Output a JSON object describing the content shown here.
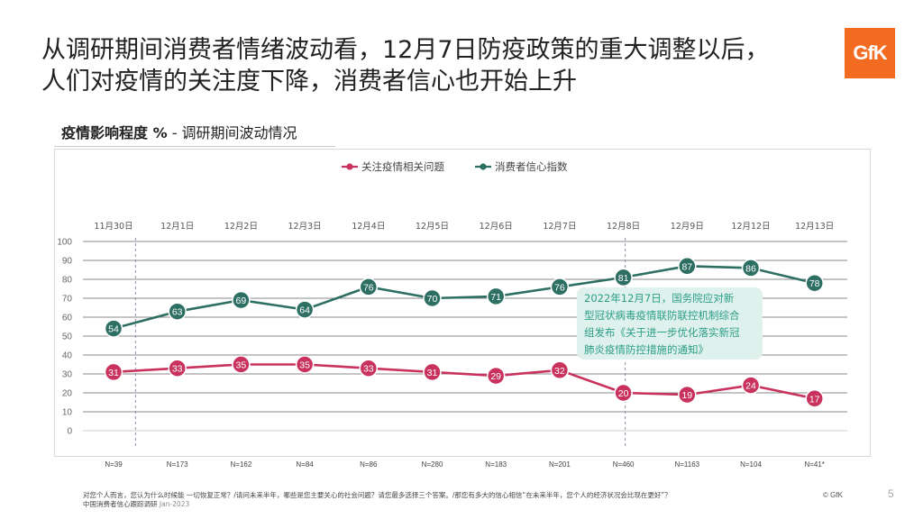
{
  "slide": {
    "title_line1": "从调研期间消费者情绪波动看，12月7日防疫政策的重大调整以后，",
    "title_line2": "人们对疫情的关注度下降，消费者信心也开始上升",
    "logo_text": "GfK",
    "subhead_bold": "疫情影响程度 %",
    "subhead_rest": " - 调研期间波动情况",
    "page_number": "5",
    "copyright": "© GfK",
    "footnote_line1": "对您个人而言，您认为什么时候能 一切恢复正常？/请问未来半年，哪些是您主要关心的社会问题？请您最多选择三个答案。/那您有多大的信心相信“在未来半年，您个人的经济状况会比现在更好”？",
    "footnote_source": "中国消费者信心跟踪调研",
    "footnote_date": "Jan-2023",
    "callout_lines": [
      "2022年12月7日，国务院应对新",
      "型冠状病毒疫情联防联控机制综合",
      "组发布《关于进一步优化落实新冠",
      "肺炎疫情防控措施的通知》"
    ]
  },
  "chart_data": {
    "type": "line",
    "categories": [
      "11月30日",
      "12月1日",
      "12月2日",
      "12月3日",
      "12月4日",
      "12月5日",
      "12月6日",
      "12月7日",
      "12月8日",
      "12月9日",
      "12月12日",
      "12月13日"
    ],
    "sample_sizes": [
      "N=39",
      "N=173",
      "N=162",
      "N=84",
      "N=86",
      "N=280",
      "N=183",
      "N=201",
      "N=460",
      "N=1163",
      "N=104",
      "N=41*"
    ],
    "series": [
      {
        "name": "关注疫情相关问题",
        "color": "#c8325d",
        "values": [
          31,
          33,
          35,
          35,
          33,
          31,
          29,
          32,
          20,
          19,
          24,
          17
        ]
      },
      {
        "name": "消费者信心指数",
        "color": "#2e6f63",
        "values": [
          54,
          63,
          69,
          64,
          76,
          70,
          71,
          76,
          81,
          87,
          86,
          78
        ]
      }
    ],
    "yticks": [
      0,
      10,
      20,
      30,
      40,
      50,
      60,
      70,
      80,
      90,
      100
    ],
    "ylim": [
      0,
      100
    ],
    "dashed_after_categories": [
      "11月30日",
      "12月8日"
    ],
    "legend_position": "top-center",
    "grid": true
  }
}
